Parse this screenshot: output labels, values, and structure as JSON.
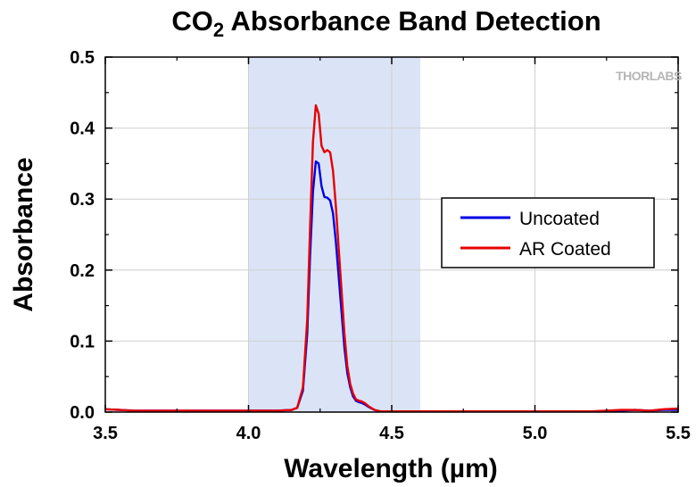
{
  "chart_data": {
    "type": "line",
    "title": {
      "prefix": "CO",
      "subscript": "2",
      "suffix": " Absorbance Band Detection"
    },
    "xlabel": "Wavelength (µm)",
    "ylabel": "Absorbance",
    "xlim": [
      3.5,
      5.5
    ],
    "ylim": [
      0.0,
      0.5
    ],
    "x_ticks": [
      "3.5",
      "4.0",
      "4.5",
      "5.0",
      "5.5"
    ],
    "y_ticks": [
      "0.0",
      "0.1",
      "0.2",
      "0.3",
      "0.4",
      "0.5"
    ],
    "grid": true,
    "highlight_band": {
      "x_start": 4.0,
      "x_end": 4.6,
      "color": "#dbe4f6"
    },
    "legend": {
      "position": "right",
      "entries": [
        {
          "label": "Uncoated",
          "color": "#0000e6"
        },
        {
          "label": "AR Coated",
          "color": "#e60000"
        }
      ]
    },
    "watermark": "THORLABS",
    "series": [
      {
        "name": "Uncoated",
        "color": "#0000e6",
        "points": [
          [
            3.5,
            0.004
          ],
          [
            3.55,
            0.003
          ],
          [
            3.6,
            0.002
          ],
          [
            3.7,
            0.002
          ],
          [
            3.8,
            0.002
          ],
          [
            3.9,
            0.002
          ],
          [
            4.0,
            0.002
          ],
          [
            4.1,
            0.002
          ],
          [
            4.15,
            0.003
          ],
          [
            4.17,
            0.006
          ],
          [
            4.19,
            0.03
          ],
          [
            4.205,
            0.11
          ],
          [
            4.215,
            0.22
          ],
          [
            4.225,
            0.31
          ],
          [
            4.235,
            0.353
          ],
          [
            4.245,
            0.35
          ],
          [
            4.255,
            0.318
          ],
          [
            4.265,
            0.303
          ],
          [
            4.275,
            0.302
          ],
          [
            4.285,
            0.298
          ],
          [
            4.295,
            0.28
          ],
          [
            4.305,
            0.24
          ],
          [
            4.315,
            0.19
          ],
          [
            4.325,
            0.14
          ],
          [
            4.335,
            0.09
          ],
          [
            4.345,
            0.055
          ],
          [
            4.355,
            0.035
          ],
          [
            4.365,
            0.022
          ],
          [
            4.375,
            0.016
          ],
          [
            4.385,
            0.014
          ],
          [
            4.395,
            0.013
          ],
          [
            4.405,
            0.011
          ],
          [
            4.42,
            0.007
          ],
          [
            4.44,
            0.003
          ],
          [
            4.46,
            0.001
          ],
          [
            4.5,
            0.001
          ],
          [
            4.6,
            0.001
          ],
          [
            4.7,
            0.001
          ],
          [
            4.8,
            0.001
          ],
          [
            4.9,
            0.001
          ],
          [
            5.0,
            0.001
          ],
          [
            5.1,
            0.001
          ],
          [
            5.2,
            0.001
          ],
          [
            5.3,
            0.002
          ],
          [
            5.35,
            0.003
          ],
          [
            5.4,
            0.002
          ],
          [
            5.45,
            0.003
          ],
          [
            5.5,
            0.003
          ]
        ]
      },
      {
        "name": "AR Coated",
        "color": "#e60000",
        "points": [
          [
            3.5,
            0.004
          ],
          [
            3.55,
            0.003
          ],
          [
            3.6,
            0.002
          ],
          [
            3.7,
            0.002
          ],
          [
            3.8,
            0.002
          ],
          [
            3.9,
            0.002
          ],
          [
            4.0,
            0.002
          ],
          [
            4.1,
            0.002
          ],
          [
            4.15,
            0.003
          ],
          [
            4.17,
            0.006
          ],
          [
            4.19,
            0.035
          ],
          [
            4.205,
            0.13
          ],
          [
            4.215,
            0.26
          ],
          [
            4.225,
            0.38
          ],
          [
            4.235,
            0.432
          ],
          [
            4.245,
            0.42
          ],
          [
            4.255,
            0.375
          ],
          [
            4.265,
            0.366
          ],
          [
            4.275,
            0.369
          ],
          [
            4.285,
            0.366
          ],
          [
            4.295,
            0.34
          ],
          [
            4.305,
            0.29
          ],
          [
            4.315,
            0.23
          ],
          [
            4.325,
            0.17
          ],
          [
            4.335,
            0.11
          ],
          [
            4.345,
            0.065
          ],
          [
            4.355,
            0.04
          ],
          [
            4.365,
            0.026
          ],
          [
            4.375,
            0.018
          ],
          [
            4.385,
            0.016
          ],
          [
            4.395,
            0.015
          ],
          [
            4.405,
            0.013
          ],
          [
            4.42,
            0.008
          ],
          [
            4.44,
            0.003
          ],
          [
            4.46,
            0.001
          ],
          [
            4.5,
            0.001
          ],
          [
            4.6,
            0.001
          ],
          [
            4.7,
            0.001
          ],
          [
            4.8,
            0.001
          ],
          [
            4.9,
            0.001
          ],
          [
            5.0,
            0.001
          ],
          [
            5.1,
            0.001
          ],
          [
            5.2,
            0.001
          ],
          [
            5.3,
            0.003
          ],
          [
            5.35,
            0.003
          ],
          [
            5.4,
            0.002
          ],
          [
            5.45,
            0.004
          ],
          [
            5.5,
            0.005
          ]
        ]
      }
    ]
  }
}
